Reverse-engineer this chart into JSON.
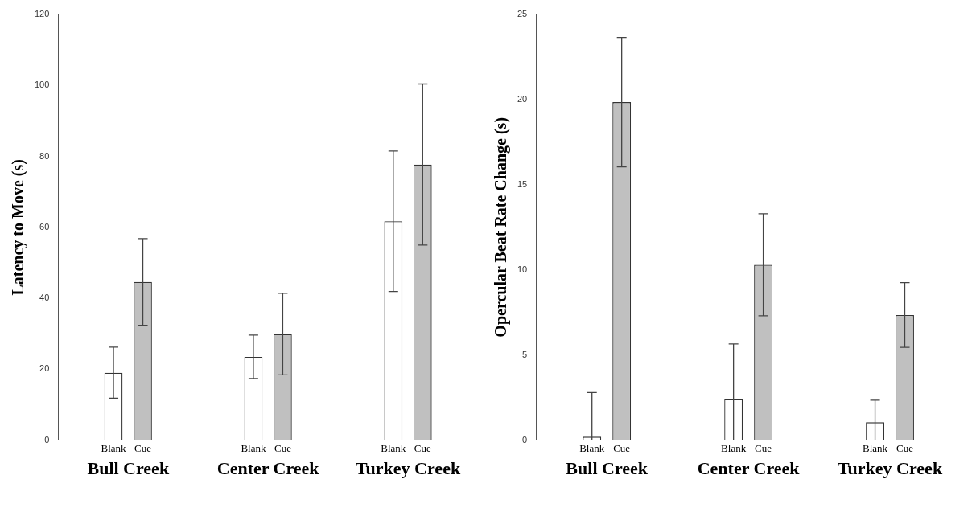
{
  "chart_data": [
    {
      "type": "bar",
      "ylabel": "Latency to Move (s)",
      "categories": [
        "Bull Creek",
        "Center Creek",
        "Turkey Creek"
      ],
      "ylim": [
        0,
        120
      ],
      "yticks": [
        0,
        20,
        40,
        60,
        80,
        100,
        120
      ],
      "grid": false,
      "legend": false,
      "series": [
        {
          "name": "Blank",
          "color": "#ffffff",
          "values": [
            19,
            23.5,
            61.7
          ],
          "errors": [
            7.2,
            6.1,
            19.8
          ]
        },
        {
          "name": "Cue",
          "color": "#c0c0c0",
          "values": [
            44.6,
            29.9,
            77.7
          ],
          "errors": [
            12.2,
            11.5,
            22.7
          ]
        }
      ]
    },
    {
      "type": "bar",
      "ylabel": "Opercular Beat Rate Change (s)",
      "categories": [
        "Bull Creek",
        "Center Creek",
        "Turkey Creek"
      ],
      "ylim": [
        0,
        25
      ],
      "yticks": [
        0,
        5,
        10,
        15,
        20,
        25
      ],
      "grid": false,
      "legend": false,
      "series": [
        {
          "name": "Blank",
          "color": "#ffffff",
          "values": [
            0.2,
            2.4,
            1.05
          ],
          "errors": [
            [
              0,
              2.8
            ],
            [
              0,
              5.65
            ],
            [
              0,
              2.35
            ]
          ]
        },
        {
          "name": "Cue",
          "color": "#c0c0c0",
          "values": [
            19.85,
            10.3,
            7.35
          ],
          "errors": [
            3.8,
            3,
            1.9
          ]
        }
      ]
    }
  ]
}
